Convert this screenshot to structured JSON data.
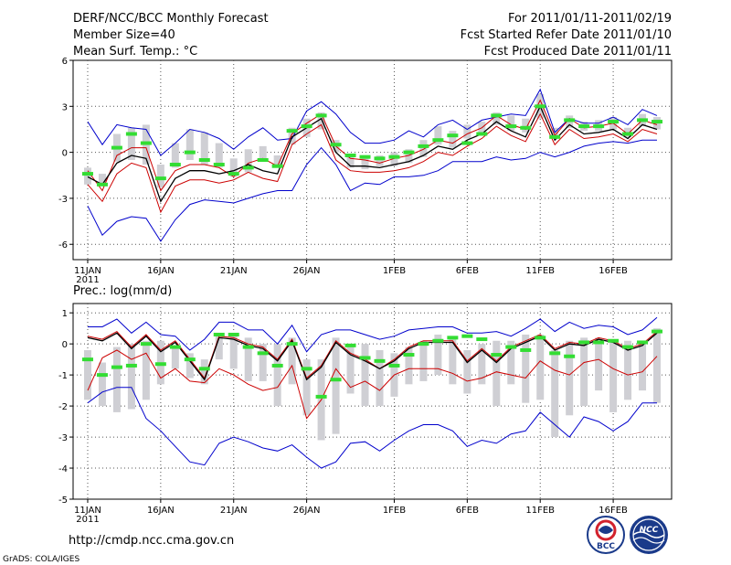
{
  "header": {
    "title": "DERF/NCC/BCC Monthly Forecast",
    "member_size": "Member Size=40",
    "variable": "Mean Surf. Temp.: °C",
    "period": "For 2011/01/11-2011/02/19",
    "refer_date": "Fcst Started Refer Date 2011/01/10",
    "produced_date": "Fcst Produced Date 2011/01/11"
  },
  "footer": {
    "url": "http://cmdp.ncc.cma.gov.cn",
    "credit": "GrADS: COLA/IGES",
    "logo_bcc_text": "BCC",
    "logo_ncc_text": "NCC"
  },
  "colors": {
    "envelope": "#0000cc",
    "spread": "#cc0000",
    "ensemble_mean": "#000000",
    "box": "#cfcfd4",
    "observed": "#33dd33"
  },
  "chart_data": [
    {
      "type": "line",
      "title": "Mean Surf. Temp.: °C",
      "x": [
        1,
        2,
        3,
        4,
        5,
        6,
        7,
        8,
        9,
        10,
        11,
        12,
        13,
        14,
        15,
        16,
        17,
        18,
        19,
        20,
        21,
        22,
        23,
        24,
        25,
        26,
        27,
        28,
        29,
        30,
        31,
        32,
        33,
        34,
        35,
        36,
        37,
        38,
        39,
        40
      ],
      "xticks": [
        {
          "day": 1,
          "label": "11JAN"
        },
        {
          "day": 6,
          "label": "16JAN"
        },
        {
          "day": 11,
          "label": "21JAN"
        },
        {
          "day": 16,
          "label": "26JAN"
        },
        {
          "day": 22,
          "label": "1FEB"
        },
        {
          "day": 27,
          "label": "6FEB"
        },
        {
          "day": 32,
          "label": "11FEB"
        },
        {
          "day": 37,
          "label": "16FEB"
        }
      ],
      "year_label": "2011",
      "ylim": [
        -7,
        6
      ],
      "yticks": [
        -6,
        -3,
        0,
        3,
        6
      ],
      "grid": true,
      "series": [
        {
          "name": "max",
          "role": "envelope",
          "values": [
            2.0,
            0.5,
            1.8,
            1.6,
            1.5,
            -0.2,
            0.6,
            1.5,
            1.3,
            0.9,
            0.2,
            1.0,
            1.6,
            0.8,
            0.9,
            2.7,
            3.3,
            2.5,
            1.3,
            0.6,
            0.6,
            0.8,
            1.4,
            1.0,
            1.8,
            2.1,
            1.5,
            2.1,
            2.3,
            2.5,
            2.4,
            4.1,
            1.3,
            2.2,
            1.9,
            1.9,
            2.3,
            1.8,
            2.8,
            2.4
          ]
        },
        {
          "name": "upper",
          "role": "spread",
          "values": [
            -1.2,
            -2.5,
            -0.2,
            0.3,
            0.3,
            -2.5,
            -1.2,
            -0.8,
            -0.8,
            -1.0,
            -1.6,
            -0.7,
            -0.4,
            -0.9,
            1.2,
            1.9,
            2.5,
            0.4,
            -0.4,
            -0.5,
            -0.7,
            -0.4,
            -0.2,
            0.2,
            0.8,
            0.6,
            1.2,
            1.6,
            2.4,
            1.8,
            1.5,
            3.4,
            1.1,
            2.2,
            1.6,
            1.7,
            1.9,
            1.2,
            2.1,
            1.8
          ]
        },
        {
          "name": "mean",
          "role": "ensemble_mean",
          "values": [
            -1.6,
            -2.1,
            -0.7,
            -0.2,
            -0.4,
            -3.2,
            -1.7,
            -1.2,
            -1.2,
            -1.4,
            -1.2,
            -0.8,
            -1.2,
            -1.4,
            1.0,
            1.6,
            2.2,
            0.0,
            -0.9,
            -0.9,
            -1.0,
            -0.8,
            -0.6,
            -0.2,
            0.4,
            0.2,
            0.8,
            1.2,
            2.0,
            1.4,
            1.0,
            3.0,
            0.8,
            1.8,
            1.2,
            1.3,
            1.5,
            0.9,
            1.8,
            1.5
          ]
        },
        {
          "name": "lower",
          "role": "spread",
          "values": [
            -2.1,
            -3.2,
            -1.4,
            -0.7,
            -1.0,
            -3.9,
            -2.2,
            -1.8,
            -1.8,
            -2.0,
            -1.8,
            -1.3,
            -1.7,
            -1.9,
            0.5,
            1.2,
            1.8,
            -0.5,
            -1.2,
            -1.3,
            -1.3,
            -1.2,
            -1.0,
            -0.6,
            0.0,
            -0.2,
            0.4,
            0.9,
            1.7,
            1.1,
            0.7,
            2.5,
            0.5,
            1.5,
            0.9,
            1.0,
            1.2,
            0.7,
            1.5,
            1.2
          ]
        },
        {
          "name": "min",
          "role": "envelope",
          "values": [
            -3.5,
            -5.4,
            -4.5,
            -4.2,
            -4.3,
            -5.8,
            -4.4,
            -3.4,
            -3.1,
            -3.2,
            -3.3,
            -3.0,
            -2.7,
            -2.5,
            -2.5,
            -0.8,
            0.3,
            -0.8,
            -2.5,
            -2.0,
            -2.1,
            -1.6,
            -1.6,
            -1.5,
            -1.2,
            -0.6,
            -0.6,
            -0.6,
            -0.3,
            -0.5,
            -0.4,
            0.0,
            -0.3,
            0.0,
            0.4,
            0.6,
            0.7,
            0.6,
            0.8,
            0.8
          ]
        }
      ],
      "boxes": {
        "name": "member spread box",
        "low": [
          -2.1,
          -2.0,
          -0.6,
          -0.5,
          -0.8,
          -2.3,
          -1.0,
          -0.5,
          -0.8,
          -1.0,
          -1.6,
          -1.3,
          -0.6,
          -0.9,
          0.5,
          1.0,
          1.5,
          0.0,
          -1.0,
          -1.1,
          -0.9,
          -0.9,
          -0.7,
          -0.3,
          0.5,
          0.3,
          0.9,
          1.2,
          1.8,
          1.4,
          1.3,
          2.2,
          1.0,
          1.6,
          1.4,
          1.4,
          1.5,
          1.0,
          1.7,
          1.5
        ],
        "high": [
          -1.0,
          -1.4,
          1.2,
          1.6,
          1.8,
          -0.8,
          0.6,
          1.5,
          1.3,
          0.6,
          -0.4,
          0.2,
          0.4,
          -0.2,
          1.6,
          2.2,
          2.6,
          0.8,
          -0.3,
          -0.2,
          -0.2,
          0.0,
          0.2,
          0.8,
          1.7,
          1.4,
          1.8,
          2.0,
          2.6,
          2.4,
          2.2,
          3.8,
          1.6,
          2.4,
          2.0,
          2.1,
          2.3,
          1.6,
          2.5,
          2.3
        ]
      },
      "observed": [
        -1.4,
        -2.1,
        0.3,
        1.2,
        0.6,
        -1.7,
        -0.8,
        0.0,
        -0.5,
        -0.8,
        -1.4,
        -1.0,
        -0.5,
        -0.9,
        1.4,
        1.7,
        2.4,
        0.5,
        -0.2,
        -0.3,
        -0.4,
        -0.3,
        0.0,
        0.4,
        0.8,
        1.1,
        0.6,
        1.2,
        2.4,
        1.7,
        1.6,
        3.0,
        1.0,
        2.1,
        1.7,
        1.7,
        2.0,
        1.2,
        2.1,
        2.0
      ]
    },
    {
      "type": "line",
      "title": "Prec.: log(mm/d)",
      "x": [
        1,
        2,
        3,
        4,
        5,
        6,
        7,
        8,
        9,
        10,
        11,
        12,
        13,
        14,
        15,
        16,
        17,
        18,
        19,
        20,
        21,
        22,
        23,
        24,
        25,
        26,
        27,
        28,
        29,
        30,
        31,
        32,
        33,
        34,
        35,
        36,
        37,
        38,
        39,
        40
      ],
      "xticks": [
        {
          "day": 1,
          "label": "11JAN"
        },
        {
          "day": 6,
          "label": "16JAN"
        },
        {
          "day": 11,
          "label": "21JAN"
        },
        {
          "day": 16,
          "label": "26JAN"
        },
        {
          "day": 22,
          "label": "1FEB"
        },
        {
          "day": 27,
          "label": "6FEB"
        },
        {
          "day": 32,
          "label": "11FEB"
        },
        {
          "day": 37,
          "label": "16FEB"
        }
      ],
      "year_label": "2011",
      "ylim": [
        -5,
        1.3
      ],
      "yticks": [
        -5,
        -4,
        -3,
        -2,
        -1,
        0,
        1
      ],
      "grid": true,
      "series": [
        {
          "name": "max",
          "role": "envelope",
          "values": [
            0.55,
            0.55,
            0.8,
            0.35,
            0.7,
            0.3,
            0.25,
            -0.2,
            0.15,
            0.7,
            0.7,
            0.45,
            0.45,
            0.0,
            0.6,
            -0.25,
            0.3,
            0.45,
            0.45,
            0.3,
            0.15,
            0.25,
            0.45,
            0.5,
            0.55,
            0.55,
            0.35,
            0.35,
            0.4,
            0.25,
            0.5,
            0.8,
            0.4,
            0.7,
            0.5,
            0.6,
            0.55,
            0.3,
            0.45,
            0.85
          ]
        },
        {
          "name": "upper",
          "role": "spread",
          "values": [
            0.25,
            0.15,
            0.4,
            -0.1,
            0.3,
            -0.2,
            0.1,
            -0.5,
            -1.1,
            0.25,
            0.2,
            0.0,
            -0.1,
            -0.5,
            0.15,
            -1.1,
            -0.7,
            0.1,
            -0.3,
            -0.5,
            -0.8,
            -0.5,
            -0.1,
            0.1,
            0.1,
            0.1,
            -0.55,
            -0.15,
            -0.55,
            -0.1,
            0.1,
            0.3,
            -0.15,
            0.05,
            0.0,
            0.2,
            0.1,
            -0.15,
            0.0,
            0.4
          ]
        },
        {
          "name": "mean",
          "role": "ensemble_mean",
          "values": [
            0.2,
            0.1,
            0.35,
            -0.15,
            0.25,
            -0.25,
            0.05,
            -0.55,
            -1.15,
            0.2,
            0.15,
            -0.05,
            -0.15,
            -0.55,
            0.1,
            -1.15,
            -0.75,
            0.05,
            -0.35,
            -0.55,
            -0.8,
            -0.55,
            -0.15,
            0.05,
            0.05,
            0.05,
            -0.6,
            -0.2,
            -0.6,
            -0.15,
            0.05,
            0.25,
            -0.2,
            0.0,
            -0.05,
            0.15,
            0.05,
            -0.2,
            -0.05,
            0.35
          ]
        },
        {
          "name": "lower",
          "role": "spread",
          "values": [
            -1.5,
            -0.45,
            -0.2,
            -0.5,
            -0.3,
            -1.1,
            -0.8,
            -1.2,
            -1.25,
            -0.8,
            -1.0,
            -1.3,
            -1.5,
            -1.4,
            -0.7,
            -2.4,
            -1.8,
            -0.8,
            -1.4,
            -1.2,
            -1.5,
            -1.0,
            -0.8,
            -0.8,
            -0.8,
            -0.95,
            -1.2,
            -1.1,
            -0.9,
            -1.0,
            -1.1,
            -0.55,
            -0.85,
            -1.0,
            -0.6,
            -0.5,
            -0.8,
            -1.0,
            -0.9,
            -0.4
          ]
        },
        {
          "name": "min",
          "role": "envelope",
          "values": [
            -1.9,
            -1.55,
            -1.4,
            -1.4,
            -2.4,
            -2.8,
            -3.3,
            -3.8,
            -3.9,
            -3.2,
            -3.0,
            -3.15,
            -3.35,
            -3.45,
            -3.25,
            -3.65,
            -4.0,
            -3.8,
            -3.2,
            -3.15,
            -3.45,
            -3.1,
            -2.8,
            -2.6,
            -2.6,
            -2.8,
            -3.3,
            -3.1,
            -3.2,
            -2.9,
            -2.8,
            -2.2,
            -2.6,
            -3.0,
            -2.35,
            -2.5,
            -2.8,
            -2.5,
            -1.9,
            -1.9
          ]
        }
      ],
      "boxes": {
        "name": "member spread box",
        "low": [
          -1.8,
          -2.0,
          -2.2,
          -2.1,
          -1.8,
          -1.3,
          -0.8,
          -1.1,
          -1.3,
          -0.5,
          -0.8,
          -1.2,
          -1.2,
          -2.0,
          -1.3,
          -2.3,
          -3.1,
          -2.9,
          -1.6,
          -2.0,
          -2.0,
          -1.7,
          -1.3,
          -1.2,
          -1.0,
          -1.3,
          -1.6,
          -1.3,
          -2.0,
          -1.3,
          -1.9,
          -1.8,
          -3.0,
          -2.3,
          -2.0,
          -1.5,
          -2.2,
          -1.8,
          -1.5,
          -1.9
        ],
        "high": [
          -0.2,
          -0.6,
          -0.1,
          0.0,
          0.1,
          0.1,
          -0.1,
          -0.3,
          -0.5,
          0.3,
          0.3,
          0.2,
          0.0,
          0.0,
          0.2,
          -0.5,
          -0.5,
          0.2,
          0.0,
          0.0,
          -0.2,
          -0.3,
          -0.1,
          0.1,
          0.3,
          0.2,
          -0.2,
          0.0,
          0.1,
          0.1,
          0.3,
          0.3,
          -0.2,
          0.1,
          0.2,
          0.2,
          0.1,
          0.1,
          0.0,
          0.5
        ]
      },
      "observed": [
        -0.5,
        -1.0,
        -0.75,
        -0.7,
        0.0,
        -0.65,
        -0.1,
        -0.5,
        -0.8,
        0.3,
        0.3,
        -0.1,
        -0.3,
        -0.7,
        0.0,
        -0.8,
        -1.7,
        -1.15,
        -0.05,
        -0.45,
        -0.55,
        -0.7,
        -0.35,
        0.0,
        0.1,
        0.2,
        0.25,
        0.15,
        -0.35,
        -0.1,
        -0.2,
        0.2,
        -0.3,
        -0.4,
        0.05,
        0.05,
        0.1,
        -0.1,
        0.05,
        0.4
      ]
    }
  ]
}
